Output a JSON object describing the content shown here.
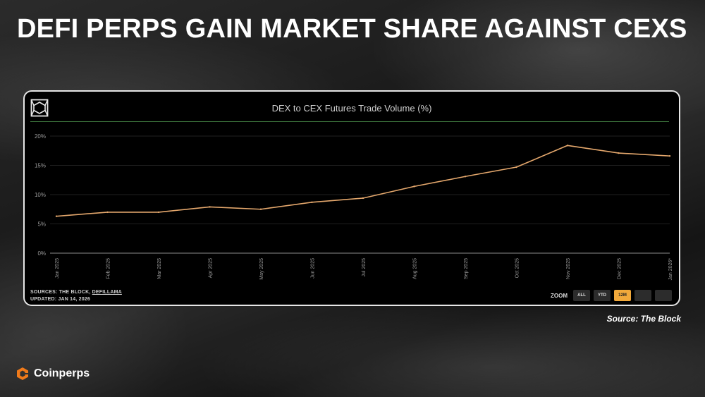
{
  "headline": "DEFI PERPS GAIN MARKET SHARE AGAINST CEXS",
  "card": {
    "logo_icon": "the-block-cube-icon",
    "sources_prefix": "SOURCES: THE BLOCK, ",
    "sources_link": "DEFILLAMA",
    "updated": "UPDATED: JAN 14, 2026",
    "zoom_label": "ZOOM",
    "zoom_buttons": [
      {
        "label": "ALL",
        "active": false
      },
      {
        "label": "YTD",
        "active": false
      },
      {
        "label": "12M",
        "active": true
      },
      {
        "label": "",
        "active": false
      },
      {
        "label": "",
        "active": false
      }
    ]
  },
  "source_credit": "Source: The Block",
  "brand": {
    "name": "Coinperps",
    "icon": "coinperps-logo-icon"
  },
  "colors": {
    "line": "#e5a86d",
    "accent": "#f2a93b",
    "title_rule": "#3f7a3f",
    "brand_orange": "#f07a1a"
  },
  "chart_data": {
    "type": "line",
    "title": "DEX to CEX Futures Trade Volume (%)",
    "categories": [
      "Jan 2025",
      "Feb 2025",
      "Mar 2025",
      "Apr 2025",
      "May 2025",
      "Jun 2025",
      "Jul 2025",
      "Aug 2025",
      "Sep 2025",
      "Oct 2025",
      "Nov 2025",
      "Dec 2025",
      "Jan 2026*"
    ],
    "series": [
      {
        "values": [
          6.3,
          7.0,
          7.0,
          7.9,
          7.5,
          8.7,
          9.4,
          11.4,
          13.1,
          14.7,
          18.4,
          17.1,
          16.6
        ]
      }
    ],
    "y_ticks": [
      "0%",
      "5%",
      "10%",
      "15%",
      "20%"
    ],
    "y_tick_values": [
      0,
      5,
      10,
      15,
      20
    ],
    "ylim": [
      0,
      20
    ],
    "grid": true
  }
}
